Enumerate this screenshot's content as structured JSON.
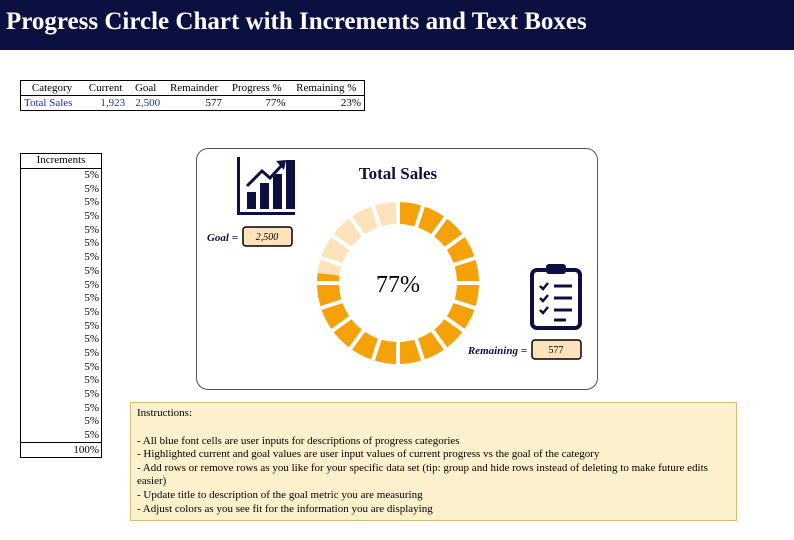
{
  "header": {
    "title": "Progress Circle Chart with Increments and Text Boxes"
  },
  "summary_table": {
    "columns": [
      "Category",
      "Current",
      "Goal",
      "Remainder",
      "Progress %",
      "Remaining %"
    ],
    "rows": [
      [
        "Total Sales",
        "1,923",
        "2,500",
        "577",
        "77%",
        "23%"
      ]
    ]
  },
  "goal_box": {
    "label": "Goal =",
    "value": "2,500"
  },
  "remaining_box": {
    "label": "Remaining =",
    "value": "577"
  },
  "instructions": {
    "heading": "Instructions:",
    "lines": [
      "- All blue font cells are user inputs for descriptions of progress categories",
      "- Highlighted current and goal values are user input values of current progress vs the goal of the category",
      "- Add rows or remove  rows as you like for your specific data set (tip: group and hide rows instead of deleting to make future edits easier)",
      "- Update title to description of the goal metric you are measuring",
      "- Adjust colors as you see fit for the information you are displaying"
    ]
  },
  "chart_data": {
    "type": "donut",
    "title": "Total Sales",
    "center_label": "77%",
    "values": [
      77,
      23
    ],
    "colors": [
      "#f5a20a",
      "#fde3bb"
    ],
    "increments_header": "Increments",
    "increments": [
      5,
      5,
      5,
      5,
      5,
      5,
      5,
      5,
      5,
      5,
      5,
      5,
      5,
      5,
      5,
      5,
      5,
      5,
      5,
      5
    ],
    "increment_labels": [
      "5%",
      "5%",
      "5%",
      "5%",
      "5%",
      "5%",
      "5%",
      "5%",
      "5%",
      "5%",
      "5%",
      "5%",
      "5%",
      "5%",
      "5%",
      "5%",
      "5%",
      "5%",
      "5%",
      "5%"
    ],
    "increments_total": "100%"
  }
}
